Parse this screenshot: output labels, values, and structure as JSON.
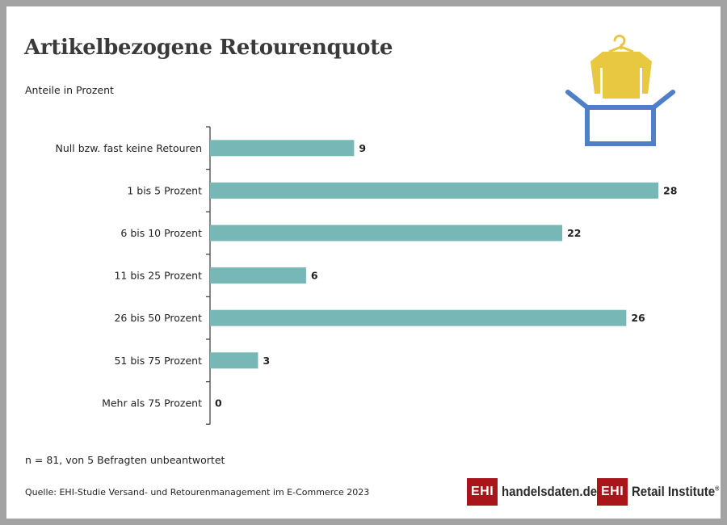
{
  "title": "Artikelbezogene Retourenquote",
  "subtitle": "Anteile in Prozent",
  "note": "n = 81, von 5 Befragten unbeantwortet",
  "source": "Quelle: EHI-Studie Versand- und Retourenmanagement im E-Commerce 2023",
  "logos": {
    "left_box": "EHI",
    "left_text": "handelsdaten.de",
    "right_box": "EHI",
    "right_text": "Retail Institute",
    "right_mark": "®"
  },
  "illustration": {
    "icon": "shirt-in-box-icon",
    "shirt_color": "#e8c840",
    "box_color": "#4f7fc7"
  },
  "colors": {
    "bar": "#77b8b6",
    "axis": "#444444",
    "text": "#222222"
  },
  "chart_data": {
    "type": "bar",
    "orientation": "horizontal",
    "categories": [
      "Null bzw. fast keine Retouren",
      "1 bis 5 Prozent",
      "6 bis 10 Prozent",
      "11 bis 25 Prozent",
      "26 bis 50 Prozent",
      "51 bis 75 Prozent",
      "Mehr als 75 Prozent"
    ],
    "values": [
      9,
      28,
      22,
      6,
      26,
      3,
      0
    ],
    "data_labels": [
      "9",
      "28",
      "22",
      "6",
      "26",
      "3",
      "0"
    ],
    "title": "Artikelbezogene Retourenquote",
    "xlabel": "",
    "ylabel": "",
    "xlim": [
      0,
      28
    ],
    "grid": false,
    "legend": "none"
  }
}
